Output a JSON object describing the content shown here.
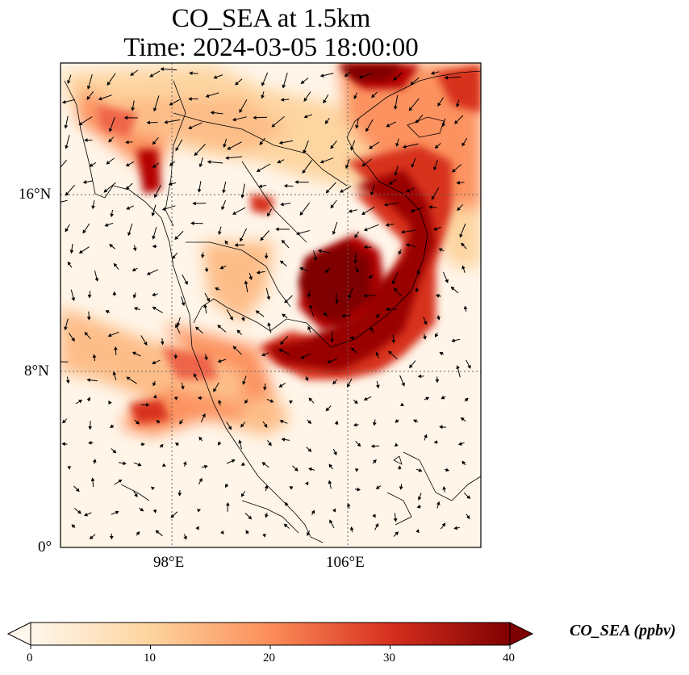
{
  "title": {
    "line1": "CO_SEA at 1.5km",
    "line2": "Time: 2024-03-05 18:00:00"
  },
  "map": {
    "projection": "PlateCarree",
    "lon_range": [
      93,
      112
    ],
    "lat_range": [
      0,
      22
    ],
    "lat_ticks": [
      {
        "value": 16,
        "label": "16°N"
      },
      {
        "value": 8,
        "label": "8°N"
      },
      {
        "value": 0,
        "label": "0°"
      }
    ],
    "lon_ticks": [
      {
        "value": 98,
        "label": "98°E"
      },
      {
        "value": 106,
        "label": "106°E"
      }
    ],
    "gridlines": "dotted",
    "coastlines": true,
    "wind_vectors": true,
    "colormap": "OrRd"
  },
  "colorbar": {
    "label": "CO_SEA (ppbv)",
    "min": 0,
    "max": 40,
    "ticks": [
      "0",
      "10",
      "20",
      "30",
      "40"
    ],
    "extend": "both",
    "colors": [
      "#fff7ec",
      "#fdd49e",
      "#fc8d59",
      "#d7301f",
      "#7f0000"
    ]
  }
}
